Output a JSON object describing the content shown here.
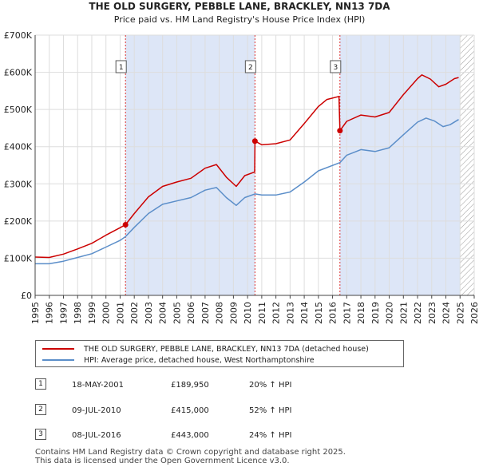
{
  "title": "THE OLD SURGERY, PEBBLE LANE, BRACKLEY, NN13 7DA",
  "subtitle": "Price paid vs. HM Land Registry's House Price Index (HPI)",
  "chart_data": {
    "type": "line",
    "title": "THE OLD SURGERY, PEBBLE LANE, BRACKLEY, NN13 7DA",
    "subtitle": "Price paid vs. HM Land Registry's House Price Index (HPI)",
    "xlabel": "",
    "ylabel": "",
    "xlim": [
      1995,
      2026
    ],
    "ylim": [
      0,
      700000
    ],
    "x_ticks": [
      1995,
      1996,
      1997,
      1998,
      1999,
      2000,
      2001,
      2002,
      2003,
      2004,
      2005,
      2006,
      2007,
      2008,
      2009,
      2010,
      2011,
      2012,
      2013,
      2014,
      2015,
      2016,
      2017,
      2018,
      2019,
      2020,
      2021,
      2022,
      2023,
      2024,
      2025,
      2026
    ],
    "y_ticks": [
      {
        "value": 0,
        "label": "£0"
      },
      {
        "value": 100000,
        "label": "£100K"
      },
      {
        "value": 200000,
        "label": "£200K"
      },
      {
        "value": 300000,
        "label": "£300K"
      },
      {
        "value": 400000,
        "label": "£400K"
      },
      {
        "value": 500000,
        "label": "£500K"
      },
      {
        "value": 600000,
        "label": "£600K"
      },
      {
        "value": 700000,
        "label": "£700K"
      }
    ],
    "grid": true,
    "colors": {
      "property": "#cc0000",
      "hpi": "#5b8ec9",
      "shade": "#dde6f7",
      "vline": "#dd3333"
    },
    "series": [
      {
        "name": "THE OLD SURGERY, PEBBLE LANE, BRACKLEY, NN13 7DA (detached house)",
        "points": [
          [
            1995,
            103000
          ],
          [
            1996,
            102000
          ],
          [
            1997,
            111000
          ],
          [
            1998,
            125000
          ],
          [
            1999,
            140000
          ],
          [
            2000,
            162000
          ],
          [
            2001.0,
            182000
          ],
          [
            2001.38,
            189950
          ],
          [
            2002,
            220000
          ],
          [
            2003,
            265000
          ],
          [
            2004,
            293000
          ],
          [
            2005,
            305000
          ],
          [
            2006,
            315000
          ],
          [
            2007,
            342000
          ],
          [
            2007.8,
            352000
          ],
          [
            2008.5,
            318000
          ],
          [
            2009.2,
            293000
          ],
          [
            2009.8,
            322000
          ],
          [
            2010.5,
            332000
          ],
          [
            2010.52,
            415000
          ],
          [
            2011,
            405000
          ],
          [
            2012,
            408000
          ],
          [
            2013,
            418000
          ],
          [
            2014,
            462000
          ],
          [
            2015,
            508000
          ],
          [
            2015.6,
            527000
          ],
          [
            2016.45,
            535000
          ],
          [
            2016.52,
            443000
          ],
          [
            2017,
            468000
          ],
          [
            2018,
            485000
          ],
          [
            2019,
            480000
          ],
          [
            2020,
            492000
          ],
          [
            2021,
            540000
          ],
          [
            2022,
            583000
          ],
          [
            2022.3,
            593000
          ],
          [
            2022.9,
            582000
          ],
          [
            2023.5,
            561000
          ],
          [
            2024,
            568000
          ],
          [
            2024.6,
            583000
          ],
          [
            2024.9,
            586000
          ]
        ]
      },
      {
        "name": "HPI: Average price, detached house, West Northamptonshire",
        "points": [
          [
            1995,
            85000
          ],
          [
            1996,
            85000
          ],
          [
            1997,
            92000
          ],
          [
            1998,
            102000
          ],
          [
            1999,
            112000
          ],
          [
            2000,
            130000
          ],
          [
            2001.0,
            148000
          ],
          [
            2001.38,
            158000
          ],
          [
            2002,
            183000
          ],
          [
            2003,
            220000
          ],
          [
            2004,
            245000
          ],
          [
            2005,
            254000
          ],
          [
            2006,
            263000
          ],
          [
            2007,
            283000
          ],
          [
            2007.8,
            290000
          ],
          [
            2008.5,
            263000
          ],
          [
            2009.2,
            242000
          ],
          [
            2009.8,
            263000
          ],
          [
            2010.52,
            273000
          ],
          [
            2011,
            270000
          ],
          [
            2012,
            270000
          ],
          [
            2013,
            278000
          ],
          [
            2014,
            305000
          ],
          [
            2015,
            335000
          ],
          [
            2016.52,
            357000
          ],
          [
            2017,
            377000
          ],
          [
            2018,
            392000
          ],
          [
            2019,
            387000
          ],
          [
            2020,
            397000
          ],
          [
            2021,
            432000
          ],
          [
            2022,
            466000
          ],
          [
            2022.6,
            477000
          ],
          [
            2023.2,
            469000
          ],
          [
            2023.8,
            454000
          ],
          [
            2024.3,
            459000
          ],
          [
            2024.9,
            473000
          ]
        ]
      }
    ],
    "sale_points": [
      {
        "label": "1",
        "x": 2001.38,
        "y": 189950
      },
      {
        "label": "2",
        "x": 2010.52,
        "y": 415000
      },
      {
        "label": "3",
        "x": 2016.52,
        "y": 443000
      }
    ],
    "shaded_regions": [
      [
        2001.38,
        2010.52
      ],
      [
        2016.52,
        2025.0
      ]
    ],
    "hatched_region": [
      2025.0,
      2026
    ]
  },
  "legend": {
    "property_label": "THE OLD SURGERY, PEBBLE LANE, BRACKLEY, NN13 7DA (detached house)",
    "hpi_label": "HPI: Average price, detached house, West Northamptonshire"
  },
  "sales": [
    {
      "num": "1",
      "date": "18-MAY-2001",
      "price": "£189,950",
      "change": "20% ↑ HPI"
    },
    {
      "num": "2",
      "date": "09-JUL-2010",
      "price": "£415,000",
      "change": "52% ↑ HPI"
    },
    {
      "num": "3",
      "date": "08-JUL-2016",
      "price": "£443,000",
      "change": "24% ↑ HPI"
    }
  ],
  "footer": {
    "line1": "Contains HM Land Registry data © Crown copyright and database right 2025.",
    "line2": "This data is licensed under the Open Government Licence v3.0."
  }
}
